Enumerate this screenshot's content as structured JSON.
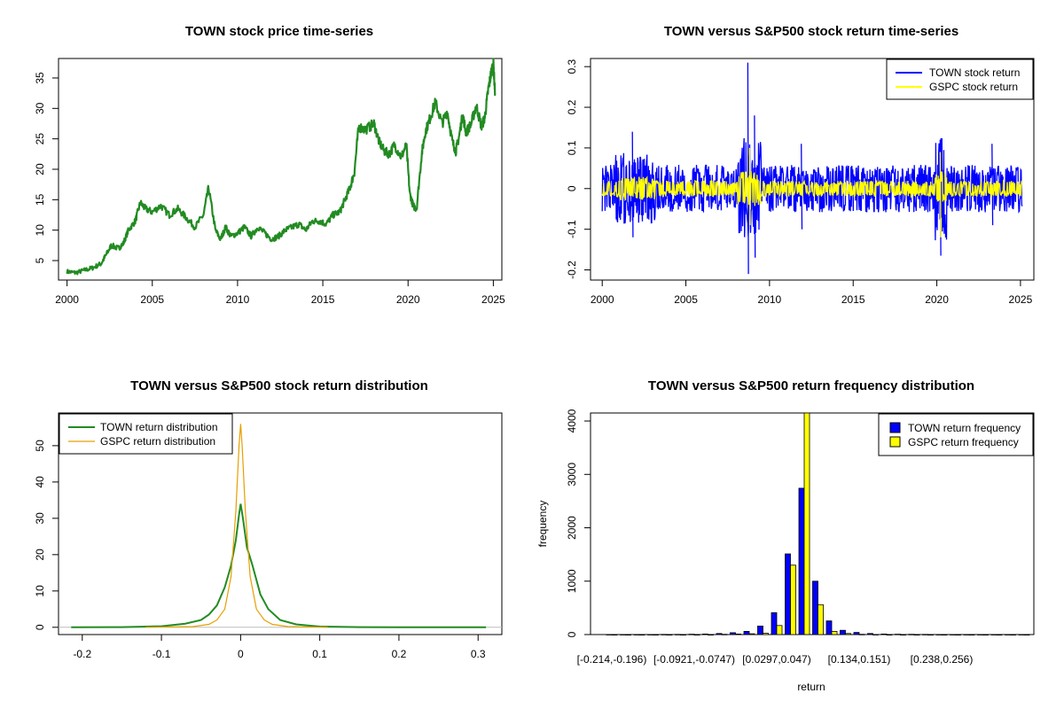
{
  "chart_data": [
    {
      "type": "line",
      "title": "TOWN stock price time-series",
      "xlabel": "",
      "ylabel": "",
      "xlim": [
        1999.5,
        2025.5
      ],
      "ylim": [
        1.8,
        38.2
      ],
      "xticks": [
        2000,
        2005,
        2010,
        2015,
        2020,
        2025
      ],
      "yticks": [
        5,
        10,
        15,
        20,
        25,
        30,
        35
      ],
      "color": "#228b22",
      "series": [
        {
          "name": "TOWN",
          "x": [
            2000.0,
            2000.5,
            2001.0,
            2001.5,
            2002.0,
            2002.3,
            2002.6,
            2003.0,
            2003.3,
            2003.6,
            2004.0,
            2004.3,
            2004.6,
            2005.0,
            2005.5,
            2006.0,
            2006.5,
            2007.0,
            2007.5,
            2008.0,
            2008.3,
            2008.7,
            2009.0,
            2009.3,
            2009.6,
            2010.0,
            2010.4,
            2010.8,
            2011.2,
            2011.6,
            2012.0,
            2012.4,
            2012.8,
            2013.2,
            2013.6,
            2014.0,
            2014.4,
            2014.8,
            2015.2,
            2015.6,
            2016.0,
            2016.3,
            2016.6,
            2016.85,
            2017.1,
            2017.5,
            2018.0,
            2018.3,
            2018.6,
            2018.9,
            2019.2,
            2019.6,
            2019.9,
            2020.1,
            2020.3,
            2020.5,
            2020.8,
            2021.0,
            2021.3,
            2021.6,
            2022.0,
            2022.3,
            2022.6,
            2022.8,
            2023.0,
            2023.2,
            2023.4,
            2023.7,
            2024.0,
            2024.3,
            2024.5,
            2024.7,
            2024.85,
            2025.0,
            2025.1
          ],
          "y": [
            3.2,
            3.0,
            3.4,
            3.8,
            4.5,
            6.0,
            7.5,
            7.0,
            7.8,
            10.0,
            11.5,
            14.5,
            13.5,
            13.0,
            14.0,
            12.5,
            13.5,
            12.0,
            10.5,
            12.5,
            17.0,
            10.0,
            8.5,
            10.5,
            9.0,
            9.5,
            10.5,
            9.0,
            10.5,
            9.5,
            8.5,
            9.0,
            10.0,
            10.5,
            11.0,
            10.0,
            11.5,
            11.5,
            11.0,
            12.5,
            13.0,
            15.0,
            17.0,
            19.5,
            27.0,
            26.5,
            27.5,
            24.5,
            23.0,
            22.5,
            24.0,
            22.0,
            24.0,
            16.0,
            14.0,
            13.5,
            22.5,
            26.0,
            28.5,
            31.0,
            27.5,
            29.5,
            24.5,
            23.0,
            25.5,
            29.0,
            26.0,
            27.5,
            30.5,
            27.0,
            28.5,
            33.0,
            35.5,
            37.5,
            32.5
          ]
        }
      ]
    },
    {
      "type": "line",
      "title": "TOWN versus S&P500 stock return time-series",
      "xlabel": "",
      "ylabel": "",
      "xlim": [
        1999.3,
        2025.8
      ],
      "ylim": [
        -0.225,
        0.32
      ],
      "xticks": [
        2000,
        2005,
        2010,
        2015,
        2020,
        2025
      ],
      "yticks": [
        -0.2,
        -0.1,
        0.0,
        0.1,
        0.2,
        0.3
      ],
      "legend": "top-right",
      "series": [
        {
          "name": "TOWN stock return",
          "color": "#0000ff",
          "amplitude": 0.045,
          "spikes": [
            [
              2001.8,
              0.14,
              -0.12
            ],
            [
              2008.7,
              0.31,
              -0.21
            ],
            [
              2009.1,
              0.18,
              -0.17
            ],
            [
              2011.9,
              0.11,
              -0.1
            ],
            [
              2020.2,
              0.12,
              -0.165
            ],
            [
              2023.3,
              0.11,
              -0.09
            ]
          ]
        },
        {
          "name": "GSPC stock return",
          "color": "#ffff00",
          "amplitude": 0.015,
          "spikes": [
            [
              2008.8,
              0.1,
              -0.09
            ],
            [
              2020.2,
              0.09,
              -0.12
            ]
          ]
        }
      ]
    },
    {
      "type": "line",
      "title": "TOWN versus S&P500 stock return distribution",
      "xlabel": "",
      "ylabel": "",
      "xlim": [
        -0.23,
        0.33
      ],
      "ylim": [
        -2,
        59
      ],
      "xticks": [
        -0.2,
        -0.1,
        0.0,
        0.1,
        0.2,
        0.3
      ],
      "yticks": [
        0,
        10,
        20,
        30,
        40,
        50
      ],
      "legend": "top-left",
      "series": [
        {
          "name": "TOWN return distribution",
          "color": "#228b22",
          "x": [
            -0.214,
            -0.15,
            -0.1,
            -0.07,
            -0.05,
            -0.04,
            -0.03,
            -0.02,
            -0.012,
            -0.006,
            -0.002,
            0.0,
            0.003,
            0.008,
            0.015,
            0.025,
            0.035,
            0.05,
            0.07,
            0.1,
            0.15,
            0.2,
            0.256,
            0.31
          ],
          "y": [
            0,
            0.05,
            0.3,
            1.0,
            2.0,
            3.5,
            6.0,
            11.0,
            17.0,
            24.0,
            31.0,
            34.0,
            30.0,
            22.0,
            17.0,
            9.0,
            5.0,
            2.0,
            0.8,
            0.2,
            0.05,
            0.0,
            0.0,
            0.0
          ]
        },
        {
          "name": "GSPC return distribution",
          "color": "#e69f00",
          "x": [
            -0.12,
            -0.06,
            -0.04,
            -0.03,
            -0.02,
            -0.012,
            -0.006,
            -0.002,
            0.0,
            0.002,
            0.006,
            0.012,
            0.02,
            0.03,
            0.04,
            0.06,
            0.11
          ],
          "y": [
            0,
            0.2,
            0.8,
            2.0,
            5.0,
            14.0,
            32.0,
            50.0,
            56.0,
            50.0,
            32.0,
            14.0,
            5.0,
            2.0,
            0.8,
            0.2,
            0
          ]
        }
      ]
    },
    {
      "type": "bar",
      "title": "TOWN versus S&P500 return frequency distribution",
      "xlabel": "return",
      "ylabel": "frequency",
      "ylim": [
        0,
        4150
      ],
      "yticks": [
        0,
        1000,
        2000,
        3000,
        4000
      ],
      "tick_labels": [
        "[-0.214,-0.196)",
        "[-0.0921,-0.0747)",
        "[0.0297,0.047)",
        "[0.134,0.151)",
        "[0.238,0.256)"
      ],
      "legend": "top-right",
      "series": [
        {
          "name": "TOWN return frequency",
          "color": "#0000ff",
          "values": [
            2,
            1,
            1,
            2,
            3,
            4,
            6,
            10,
            20,
            35,
            60,
            160,
            410,
            1510,
            2740,
            1000,
            255,
            80,
            40,
            20,
            10,
            6,
            5,
            3,
            2,
            2,
            1,
            1,
            1,
            1,
            1
          ]
        },
        {
          "name": "GSPC return frequency",
          "color": "#ffff00",
          "values": [
            0,
            0,
            0,
            0,
            0,
            0,
            0,
            0,
            5,
            10,
            15,
            25,
            170,
            1300,
            4150,
            560,
            60,
            20,
            5,
            2,
            0,
            0,
            0,
            0,
            0,
            0,
            0,
            0,
            0,
            0,
            0
          ]
        }
      ]
    }
  ]
}
